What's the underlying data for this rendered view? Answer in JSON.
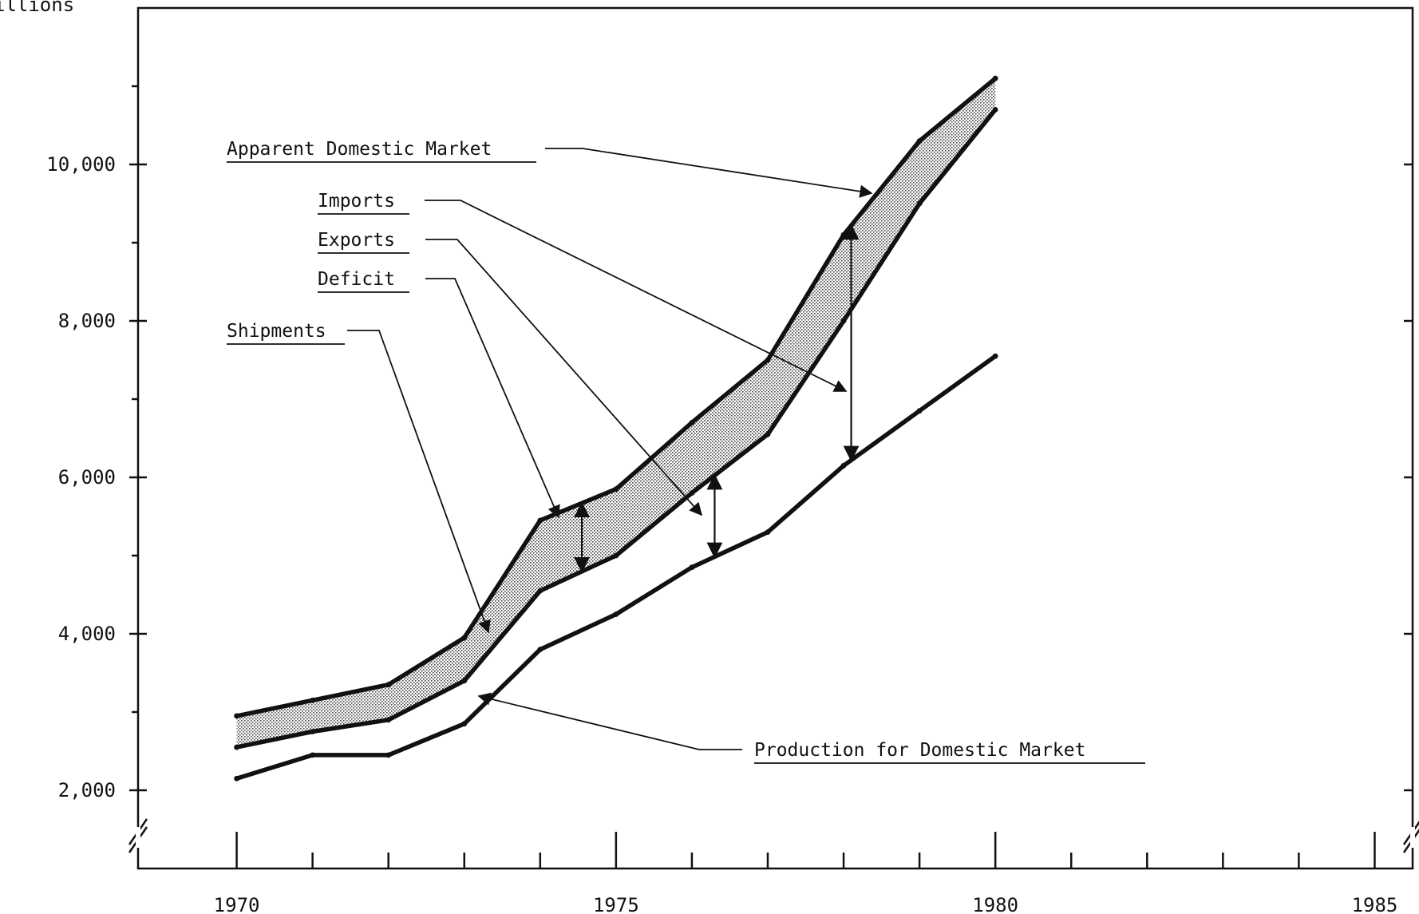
{
  "chart_data": {
    "type": "line",
    "ylabel": "illions",
    "x": [
      1970,
      1971,
      1972,
      1973,
      1974,
      1975,
      1976,
      1977,
      1978,
      1979,
      1980
    ],
    "xlim": [
      1968.7,
      1985.5
    ],
    "ylim": [
      1000,
      12000
    ],
    "y_tick_values": [
      2000,
      4000,
      6000,
      8000,
      10000
    ],
    "y_tick_labels": [
      "2,000",
      "4,000",
      "6,000",
      "8,000",
      "10,000"
    ],
    "y_minor_ticks": [
      3000,
      5000,
      7000,
      9000,
      11000
    ],
    "x_major_ticks": [
      1970,
      1975,
      1980,
      1985
    ],
    "x_minor_ticks": [
      1971,
      1972,
      1973,
      1974,
      1976,
      1977,
      1978,
      1979,
      1981,
      1982,
      1983,
      1984
    ],
    "x_tick_labels": [
      "1970",
      "1975",
      "1980",
      "1985"
    ],
    "series": [
      {
        "name": "Apparent Domestic Market",
        "values": [
          2950,
          3150,
          3350,
          3950,
          5450,
          5850,
          6700,
          7500,
          9100,
          10300,
          11100
        ]
      },
      {
        "name": "Shipments",
        "values": [
          2550,
          2750,
          2900,
          3400,
          4550,
          5000,
          5800,
          6550,
          8000,
          9500,
          10700
        ]
      },
      {
        "name": "Production for Domestic Market",
        "values": [
          2150,
          2450,
          2450,
          2850,
          3800,
          4250,
          4850,
          5300,
          6150,
          6850,
          7550
        ]
      }
    ],
    "annotations": [
      {
        "label": "Apparent Domestic Market"
      },
      {
        "label": "Imports"
      },
      {
        "label": "Exports"
      },
      {
        "label": "Deficit"
      },
      {
        "label": "Shipments"
      },
      {
        "label": "Production for Domestic Market"
      }
    ],
    "shaded_band": "between Apparent Domestic Market and Shipments",
    "grid": false,
    "axis_breaks": true
  }
}
